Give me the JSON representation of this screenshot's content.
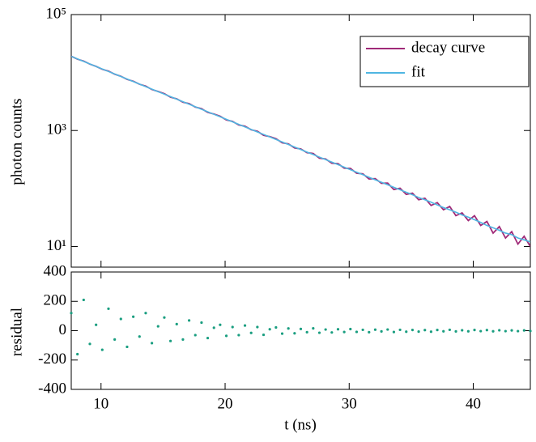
{
  "chart_data": [
    {
      "type": "line",
      "ylabel": "photon counts",
      "log_y": true,
      "legend": "upper right",
      "xlim": [
        7.6,
        44.6
      ],
      "ylim": [
        4.4,
        100000
      ],
      "yticks": [
        {
          "value": 10,
          "label": "10¹"
        },
        {
          "value": 1000,
          "label": "10³"
        },
        {
          "value": 100000,
          "label": "10⁵"
        }
      ],
      "x": [
        7.6,
        8.1,
        8.6,
        9.1,
        9.6,
        10.1,
        10.6,
        11.1,
        11.6,
        12.1,
        12.6,
        13.1,
        13.6,
        14.1,
        14.6,
        15.1,
        15.6,
        16.1,
        16.6,
        17.1,
        17.6,
        18.1,
        18.6,
        19.1,
        19.6,
        20.1,
        20.6,
        21.1,
        21.6,
        22.1,
        22.6,
        23.1,
        23.6,
        24.1,
        24.6,
        25.1,
        25.6,
        26.1,
        26.6,
        27.1,
        27.6,
        28.1,
        28.6,
        29.1,
        29.6,
        30.1,
        30.6,
        31.1,
        31.6,
        32.1,
        32.6,
        33.1,
        33.6,
        34.1,
        34.6,
        35.1,
        35.6,
        36.1,
        36.6,
        37.1,
        37.6,
        38.1,
        38.6,
        39.1,
        39.6,
        40.1,
        40.6,
        41.1,
        41.6,
        42.1,
        42.6,
        43.1,
        43.6,
        44.1,
        44.6
      ],
      "series": [
        {
          "name": "decay curve",
          "color": "#a02a78",
          "values": [
            19120,
            17032,
            15766,
            13986,
            12776,
            11394,
            10577,
            9375,
            8617,
            7615,
            7085,
            6284,
            5843,
            5093,
            4715,
            4329,
            3766,
            3516,
            3081,
            2912,
            2541,
            2382,
            2055,
            1925,
            1764,
            1525,
            1436,
            1247,
            1190,
            1030,
            971,
            828,
            785,
            723,
            614,
            589,
            501,
            482,
            415,
            401,
            334,
            323,
            273,
            268,
            224,
            222,
            183,
            179,
            146,
            148,
            123,
            124,
            96,
            101,
            79,
            83,
            64,
            68,
            51,
            57,
            43,
            49,
            34,
            38,
            28,
            34,
            23,
            27,
            17,
            22,
            14,
            18,
            11,
            15,
            10
          ]
        },
        {
          "name": "fit",
          "color": "#4fb6e2",
          "values": [
            19000,
            17192,
            15556,
            14076,
            12736,
            11524,
            10427,
            9435,
            8537,
            7725,
            6990,
            6324,
            5723,
            5178,
            4685,
            4239,
            3836,
            3471,
            3141,
            2842,
            2571,
            2327,
            2105,
            1905,
            1724,
            1560,
            1411,
            1277,
            1155,
            1045,
            946,
            856,
            775,
            701,
            634,
            574,
            519,
            470,
            425,
            385,
            348,
            315,
            285,
            258,
            233,
            211,
            191,
            173,
            156,
            141,
            128,
            116,
            105,
            95,
            86,
            78,
            70,
            64,
            58,
            52,
            47,
            43,
            39,
            35,
            32,
            29,
            26,
            23,
            21,
            19,
            17,
            16,
            14,
            13,
            12
          ]
        }
      ]
    },
    {
      "type": "scatter",
      "xlabel": "t (ns)",
      "ylabel": "residual",
      "color": "#1a9e80",
      "xlim": [
        7.6,
        44.6
      ],
      "ylim": [
        -400,
        400
      ],
      "xticks": [
        10,
        20,
        30,
        40
      ],
      "yticks": [
        -400,
        -200,
        0,
        200,
        400
      ],
      "x": [
        7.6,
        8.1,
        8.6,
        9.1,
        9.6,
        10.1,
        10.6,
        11.1,
        11.6,
        12.1,
        12.6,
        13.1,
        13.6,
        14.1,
        14.6,
        15.1,
        15.6,
        16.1,
        16.6,
        17.1,
        17.6,
        18.1,
        18.6,
        19.1,
        19.6,
        20.1,
        20.6,
        21.1,
        21.6,
        22.1,
        22.6,
        23.1,
        23.6,
        24.1,
        24.6,
        25.1,
        25.6,
        26.1,
        26.6,
        27.1,
        27.6,
        28.1,
        28.6,
        29.1,
        29.6,
        30.1,
        30.6,
        31.1,
        31.6,
        32.1,
        32.6,
        33.1,
        33.6,
        34.1,
        34.6,
        35.1,
        35.6,
        36.1,
        36.6,
        37.1,
        37.6,
        38.1,
        38.6,
        39.1,
        39.6,
        40.1,
        40.6,
        41.1,
        41.6,
        42.1,
        42.6,
        43.1,
        43.6,
        44.1,
        44.6
      ],
      "values": [
        120,
        -160,
        210,
        -90,
        40,
        -130,
        150,
        -60,
        80,
        -110,
        95,
        -40,
        120,
        -85,
        30,
        90,
        -70,
        45,
        -60,
        70,
        -30,
        55,
        -50,
        20,
        40,
        -35,
        25,
        -30,
        35,
        -15,
        25,
        -28,
        10,
        22,
        -20,
        15,
        -18,
        12,
        -10,
        16,
        -14,
        8,
        -12,
        10,
        -9,
        11,
        -8,
        6,
        -10,
        7,
        -5,
        8,
        -9,
        6,
        -7,
        5,
        -6,
        4,
        -7,
        5,
        -4,
        6,
        -5,
        3,
        -4,
        5,
        -3,
        4,
        -4,
        3,
        -3,
        2,
        -3,
        2,
        -2
      ]
    }
  ]
}
